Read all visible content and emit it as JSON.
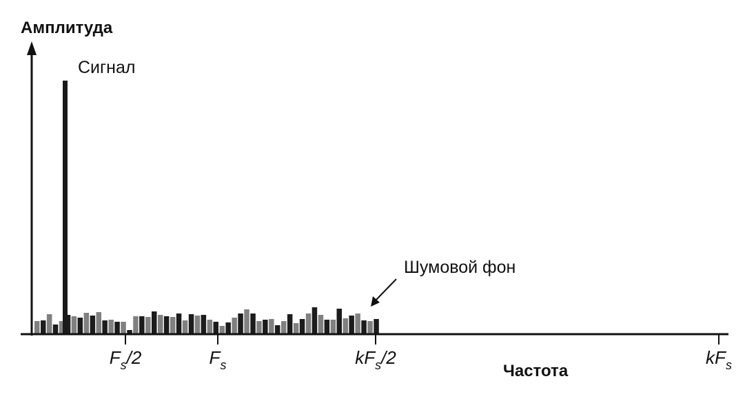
{
  "y_axis_label": "Амплитуда",
  "x_axis_label": "Частота",
  "signal_label": "Сигнал",
  "noise_label": "Шумовой фон",
  "x_ticks": [
    {
      "base": "F",
      "sub": "s",
      "suffix": "/2"
    },
    {
      "base": "F",
      "sub": "s",
      "suffix": ""
    },
    {
      "base": "kF",
      "sub": "s",
      "suffix": "/2"
    },
    {
      "base": "kF",
      "sub": "s",
      "suffix": ""
    }
  ]
}
